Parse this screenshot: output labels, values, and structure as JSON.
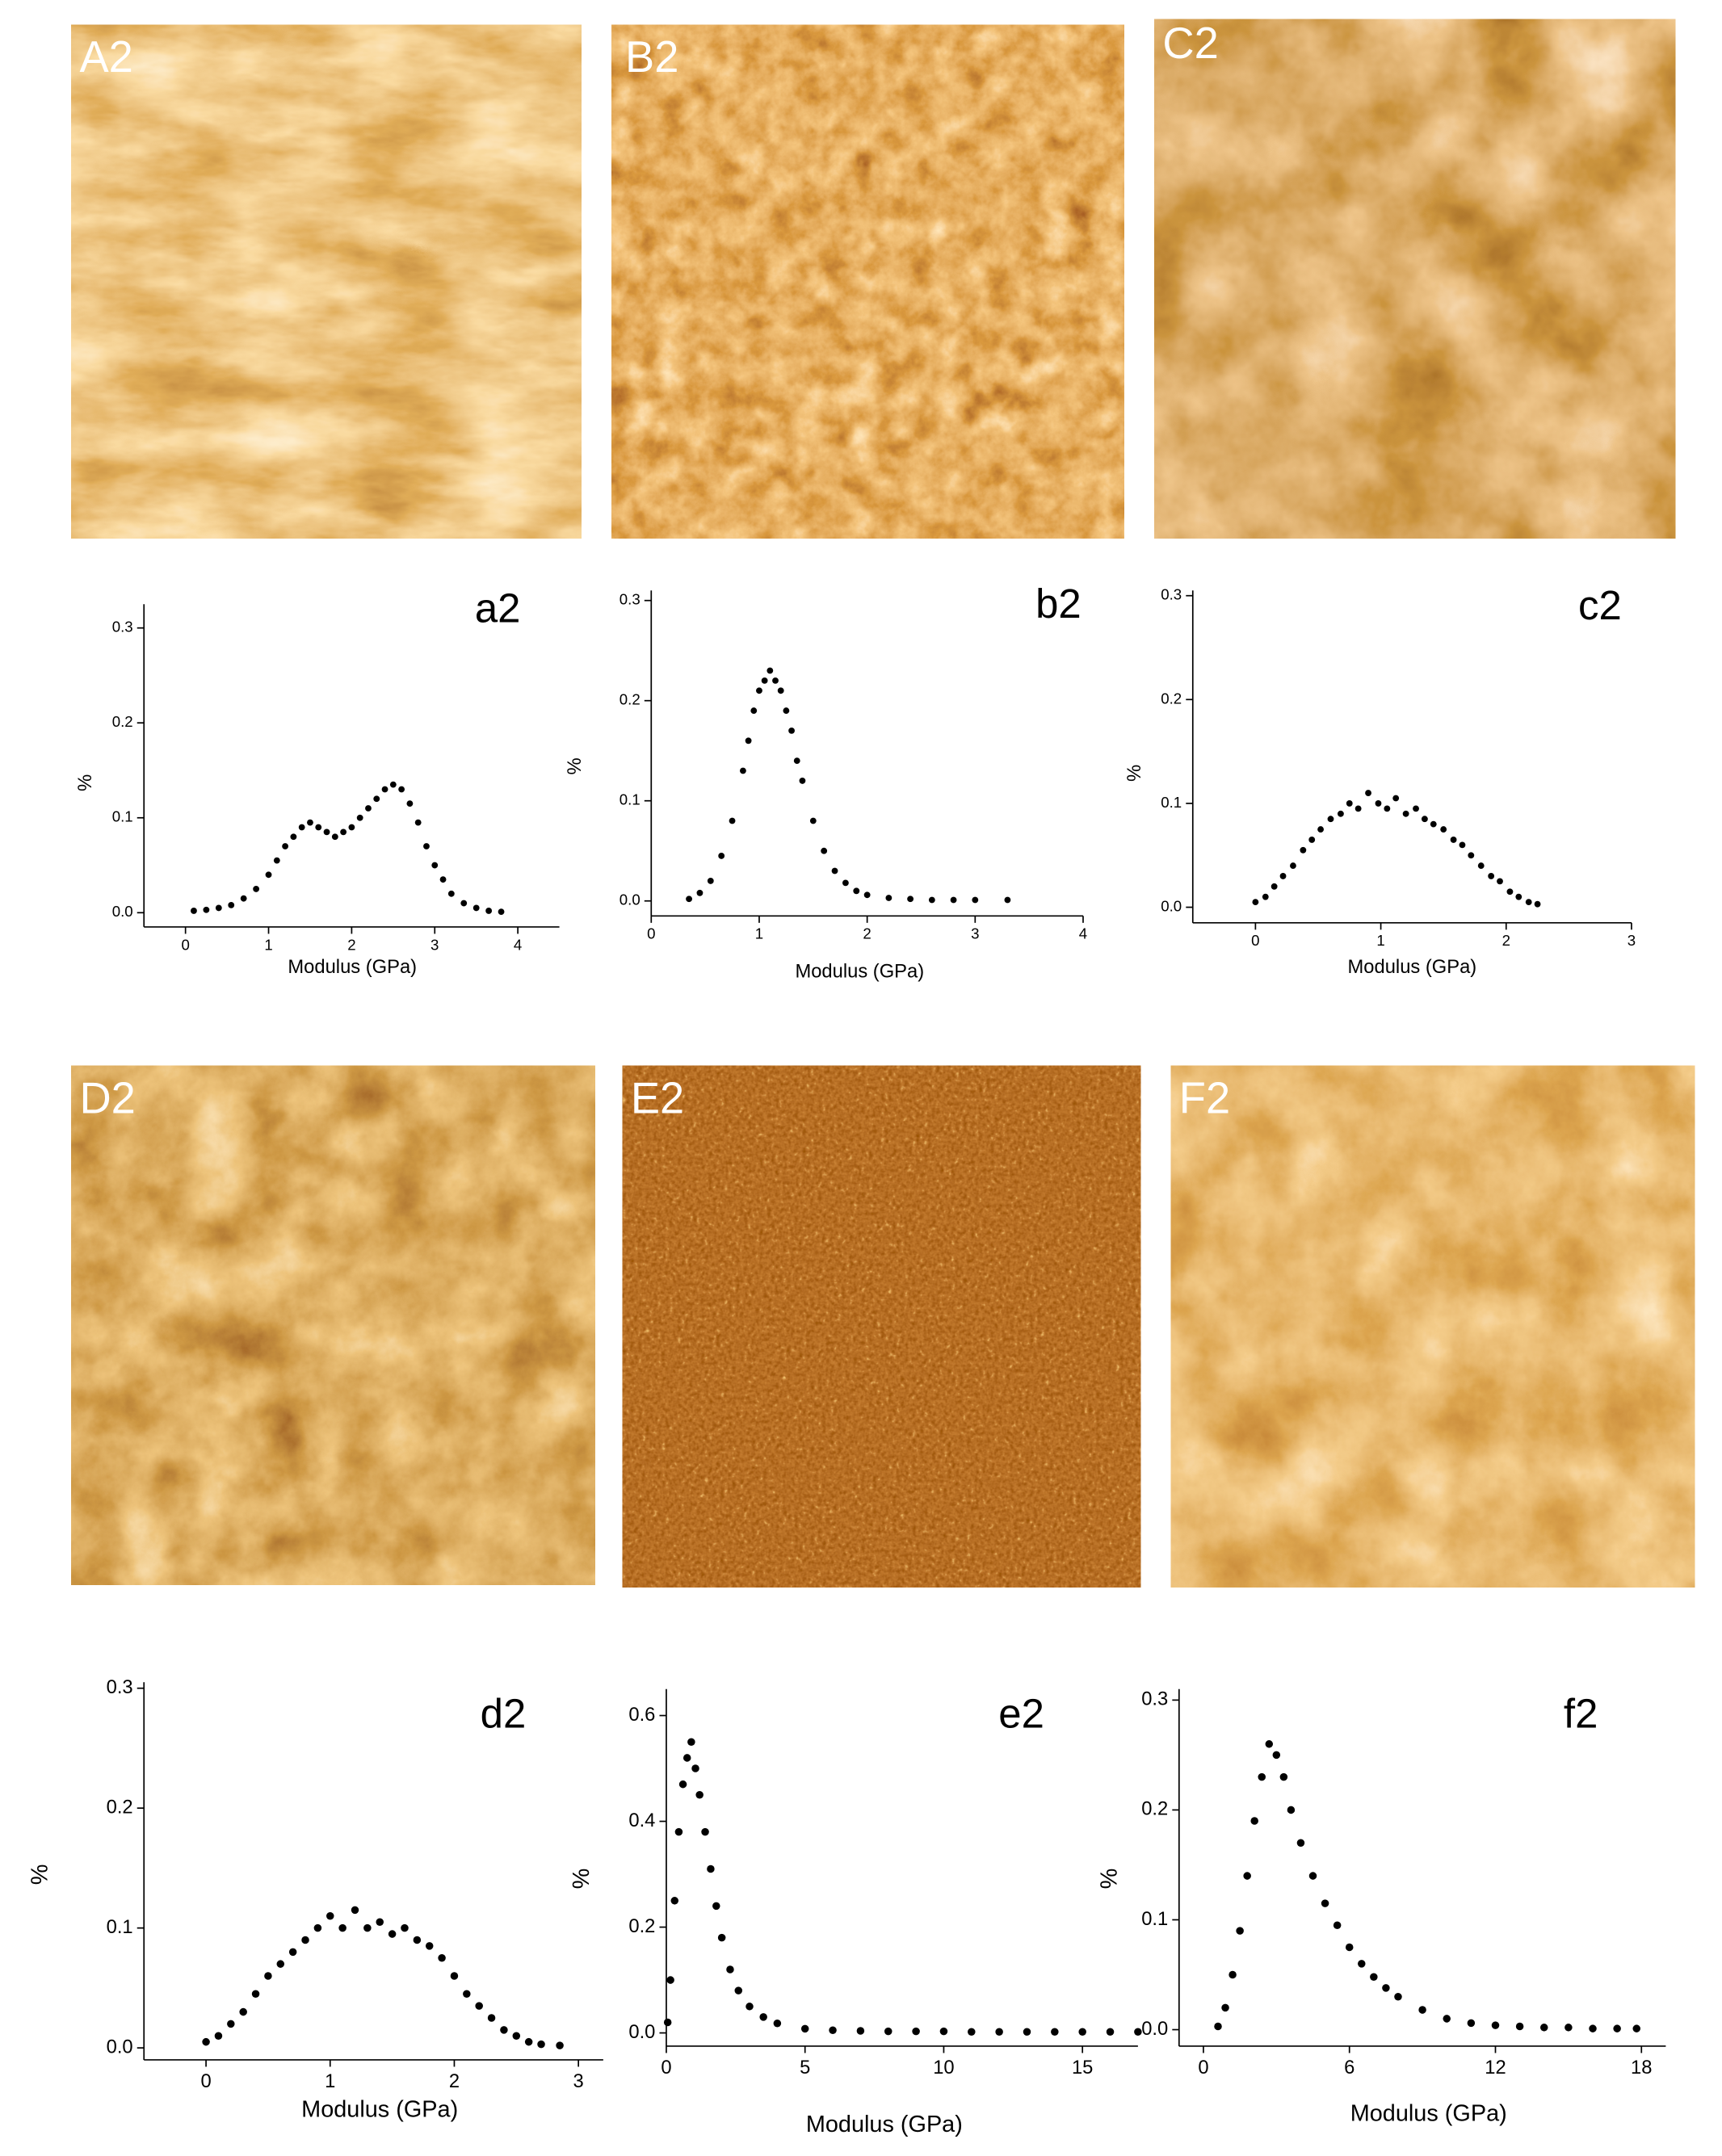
{
  "image_labels": [
    "A2",
    "B2",
    "C2",
    "D2",
    "E2",
    "F2"
  ],
  "chart_data": [
    {
      "type": "scatter",
      "title": "a2",
      "xlabel": "Modulus (GPa)",
      "ylabel": "%",
      "color": "#000000",
      "xlim": [
        -0.5,
        4.5
      ],
      "ylim": [
        -0.015,
        0.325
      ],
      "xticks": [
        0,
        1,
        2,
        3,
        4
      ],
      "yticks": [
        {
          "value": 0,
          "label": "0.0"
        },
        0.1,
        0.2,
        0.3
      ],
      "x": [
        0.1,
        0.25,
        0.4,
        0.55,
        0.7,
        0.85,
        1.0,
        1.1,
        1.2,
        1.3,
        1.4,
        1.5,
        1.6,
        1.7,
        1.8,
        1.9,
        2.0,
        2.1,
        2.2,
        2.3,
        2.4,
        2.5,
        2.6,
        2.7,
        2.8,
        2.9,
        3.0,
        3.1,
        3.2,
        3.35,
        3.5,
        3.65,
        3.8
      ],
      "y": [
        0.002,
        0.003,
        0.005,
        0.008,
        0.015,
        0.025,
        0.04,
        0.055,
        0.07,
        0.08,
        0.09,
        0.095,
        0.09,
        0.085,
        0.08,
        0.085,
        0.09,
        0.1,
        0.11,
        0.12,
        0.13,
        0.135,
        0.13,
        0.115,
        0.095,
        0.07,
        0.05,
        0.035,
        0.02,
        0.01,
        0.005,
        0.002,
        0.001
      ]
    },
    {
      "type": "scatter",
      "title": "b2",
      "xlabel": "Modulus (GPa)",
      "ylabel": "%",
      "color": "#000000",
      "xlim": [
        0,
        4
      ],
      "ylim": [
        -0.015,
        0.31
      ],
      "xticks": [
        0,
        1,
        2,
        3,
        4
      ],
      "yticks": [
        {
          "value": 0,
          "label": "0.0"
        },
        0.1,
        0.2,
        0.3
      ],
      "x": [
        0.35,
        0.45,
        0.55,
        0.65,
        0.75,
        0.85,
        0.9,
        0.95,
        1.0,
        1.05,
        1.1,
        1.15,
        1.2,
        1.25,
        1.3,
        1.35,
        1.4,
        1.5,
        1.6,
        1.7,
        1.8,
        1.9,
        2.0,
        2.2,
        2.4,
        2.6,
        2.8,
        3.0,
        3.3
      ],
      "y": [
        0.002,
        0.008,
        0.02,
        0.045,
        0.08,
        0.13,
        0.16,
        0.19,
        0.21,
        0.22,
        0.23,
        0.22,
        0.21,
        0.19,
        0.17,
        0.14,
        0.12,
        0.08,
        0.05,
        0.03,
        0.018,
        0.01,
        0.006,
        0.003,
        0.002,
        0.001,
        0.001,
        0.001,
        0.001
      ]
    },
    {
      "type": "scatter",
      "title": "c2",
      "xlabel": "Modulus (GPa)",
      "ylabel": "%",
      "color": "#000000",
      "xlim": [
        -0.5,
        3
      ],
      "ylim": [
        -0.015,
        0.305
      ],
      "xticks": [
        0,
        1,
        2,
        3
      ],
      "yticks": [
        {
          "value": 0,
          "label": "0.0"
        },
        0.1,
        0.2,
        0.3
      ],
      "x": [
        0,
        0.08,
        0.15,
        0.22,
        0.3,
        0.38,
        0.45,
        0.52,
        0.6,
        0.68,
        0.75,
        0.82,
        0.9,
        0.98,
        1.05,
        1.12,
        1.2,
        1.28,
        1.35,
        1.42,
        1.5,
        1.58,
        1.65,
        1.72,
        1.8,
        1.88,
        1.95,
        2.03,
        2.1,
        2.18,
        2.25
      ],
      "y": [
        0.005,
        0.01,
        0.02,
        0.03,
        0.04,
        0.055,
        0.065,
        0.075,
        0.085,
        0.09,
        0.1,
        0.095,
        0.11,
        0.1,
        0.095,
        0.105,
        0.09,
        0.095,
        0.085,
        0.08,
        0.075,
        0.065,
        0.06,
        0.05,
        0.04,
        0.03,
        0.025,
        0.015,
        0.01,
        0.005,
        0.003
      ]
    },
    {
      "type": "scatter",
      "title": "d2",
      "xlabel": "Modulus (GPa)",
      "ylabel": "%",
      "color": "#000000",
      "xlim": [
        -0.5,
        3.2
      ],
      "ylim": [
        -0.01,
        0.305
      ],
      "xticks": [
        0,
        1,
        2,
        3
      ],
      "yticks": [
        {
          "value": 0,
          "label": "0.0"
        },
        0.1,
        0.2,
        0.3
      ],
      "x": [
        0,
        0.1,
        0.2,
        0.3,
        0.4,
        0.5,
        0.6,
        0.7,
        0.8,
        0.9,
        1.0,
        1.1,
        1.2,
        1.3,
        1.4,
        1.5,
        1.6,
        1.7,
        1.8,
        1.9,
        2.0,
        2.1,
        2.2,
        2.3,
        2.4,
        2.5,
        2.6,
        2.7,
        2.85
      ],
      "y": [
        0.005,
        0.01,
        0.02,
        0.03,
        0.045,
        0.06,
        0.07,
        0.08,
        0.09,
        0.1,
        0.11,
        0.1,
        0.115,
        0.1,
        0.105,
        0.095,
        0.1,
        0.09,
        0.085,
        0.075,
        0.06,
        0.045,
        0.035,
        0.025,
        0.015,
        0.01,
        0.005,
        0.003,
        0.002
      ]
    },
    {
      "type": "scatter",
      "title": "e2",
      "xlabel": "Modulus (GPa)",
      "ylabel": "%",
      "color": "#000000",
      "xlim": [
        0,
        17
      ],
      "ylim": [
        -0.025,
        0.65
      ],
      "xticks": [
        0,
        5,
        10,
        15
      ],
      "yticks": [
        {
          "value": 0,
          "label": "0.0"
        },
        0.2,
        0.4,
        0.6
      ],
      "x": [
        0.05,
        0.15,
        0.3,
        0.45,
        0.6,
        0.75,
        0.9,
        1.05,
        1.2,
        1.4,
        1.6,
        1.8,
        2.0,
        2.3,
        2.6,
        3.0,
        3.5,
        4.0,
        5,
        6,
        7,
        8,
        9,
        10,
        11,
        12,
        13,
        14,
        15,
        16,
        17
      ],
      "y": [
        0.02,
        0.1,
        0.25,
        0.38,
        0.47,
        0.52,
        0.55,
        0.5,
        0.45,
        0.38,
        0.31,
        0.24,
        0.18,
        0.12,
        0.08,
        0.05,
        0.03,
        0.018,
        0.008,
        0.005,
        0.004,
        0.003,
        0.003,
        0.003,
        0.002,
        0.002,
        0.002,
        0.002,
        0.002,
        0.002,
        0.002
      ]
    },
    {
      "type": "scatter",
      "title": "f2",
      "xlabel": "Modulus (GPa)",
      "ylabel": "%",
      "color": "#000000",
      "xlim": [
        -1,
        19
      ],
      "ylim": [
        -0.015,
        0.31
      ],
      "xticks": [
        0,
        6,
        12,
        18
      ],
      "yticks": [
        {
          "value": 0,
          "label": "0.0"
        },
        0.1,
        0.2,
        0.3
      ],
      "x": [
        0.6,
        0.9,
        1.2,
        1.5,
        1.8,
        2.1,
        2.4,
        2.7,
        3.0,
        3.3,
        3.6,
        4.0,
        4.5,
        5.0,
        5.5,
        6.0,
        6.5,
        7.0,
        7.5,
        8.0,
        9,
        10,
        11,
        12,
        13,
        14,
        15,
        16,
        17,
        17.8
      ],
      "y": [
        0.003,
        0.02,
        0.05,
        0.09,
        0.14,
        0.19,
        0.23,
        0.26,
        0.25,
        0.23,
        0.2,
        0.17,
        0.14,
        0.115,
        0.095,
        0.075,
        0.06,
        0.048,
        0.038,
        0.03,
        0.018,
        0.01,
        0.006,
        0.004,
        0.003,
        0.002,
        0.002,
        0.001,
        0.001,
        0.001
      ]
    }
  ]
}
